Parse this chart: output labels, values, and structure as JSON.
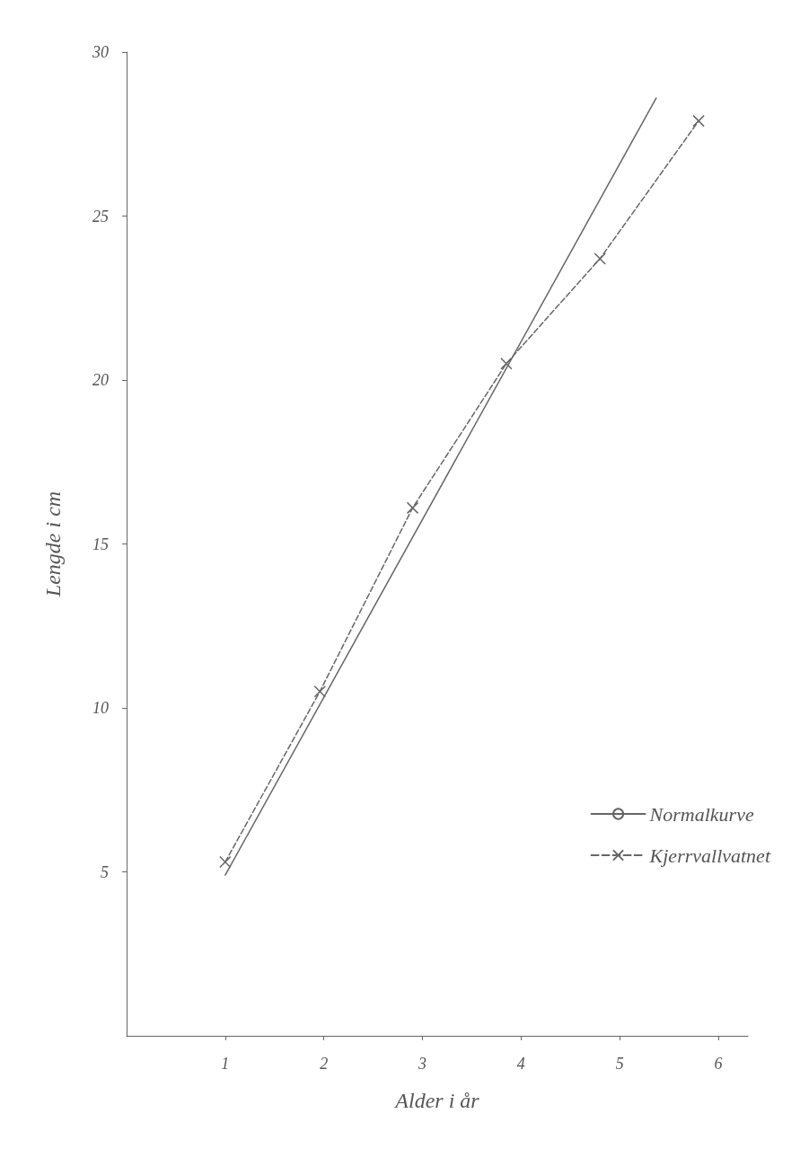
{
  "chart_data": {
    "type": "line",
    "xlabel": "Alder i år",
    "ylabel": "Lengde i cm",
    "xlim": [
      0,
      6.3
    ],
    "xticks": [
      1,
      2,
      3,
      4,
      5,
      6
    ],
    "ylim": [
      0,
      30
    ],
    "yticks": [
      5,
      10,
      15,
      20,
      25,
      30
    ],
    "grid": false,
    "legend": "bottom right",
    "series": [
      {
        "name": "Normalkurve",
        "color": "#666666",
        "line_style": "solid",
        "marker": "none",
        "x": [
          1,
          5.37
        ],
        "values": [
          4.9,
          28.6
        ]
      },
      {
        "name": "Kjerrvallvatnet",
        "color": "#666666",
        "line_style": "dashed",
        "marker": "cross",
        "x": [
          1,
          1.96,
          2.9,
          3.85,
          4.8,
          5.8
        ],
        "values": [
          5.3,
          10.5,
          16.1,
          20.5,
          23.7,
          27.9
        ]
      }
    ]
  }
}
